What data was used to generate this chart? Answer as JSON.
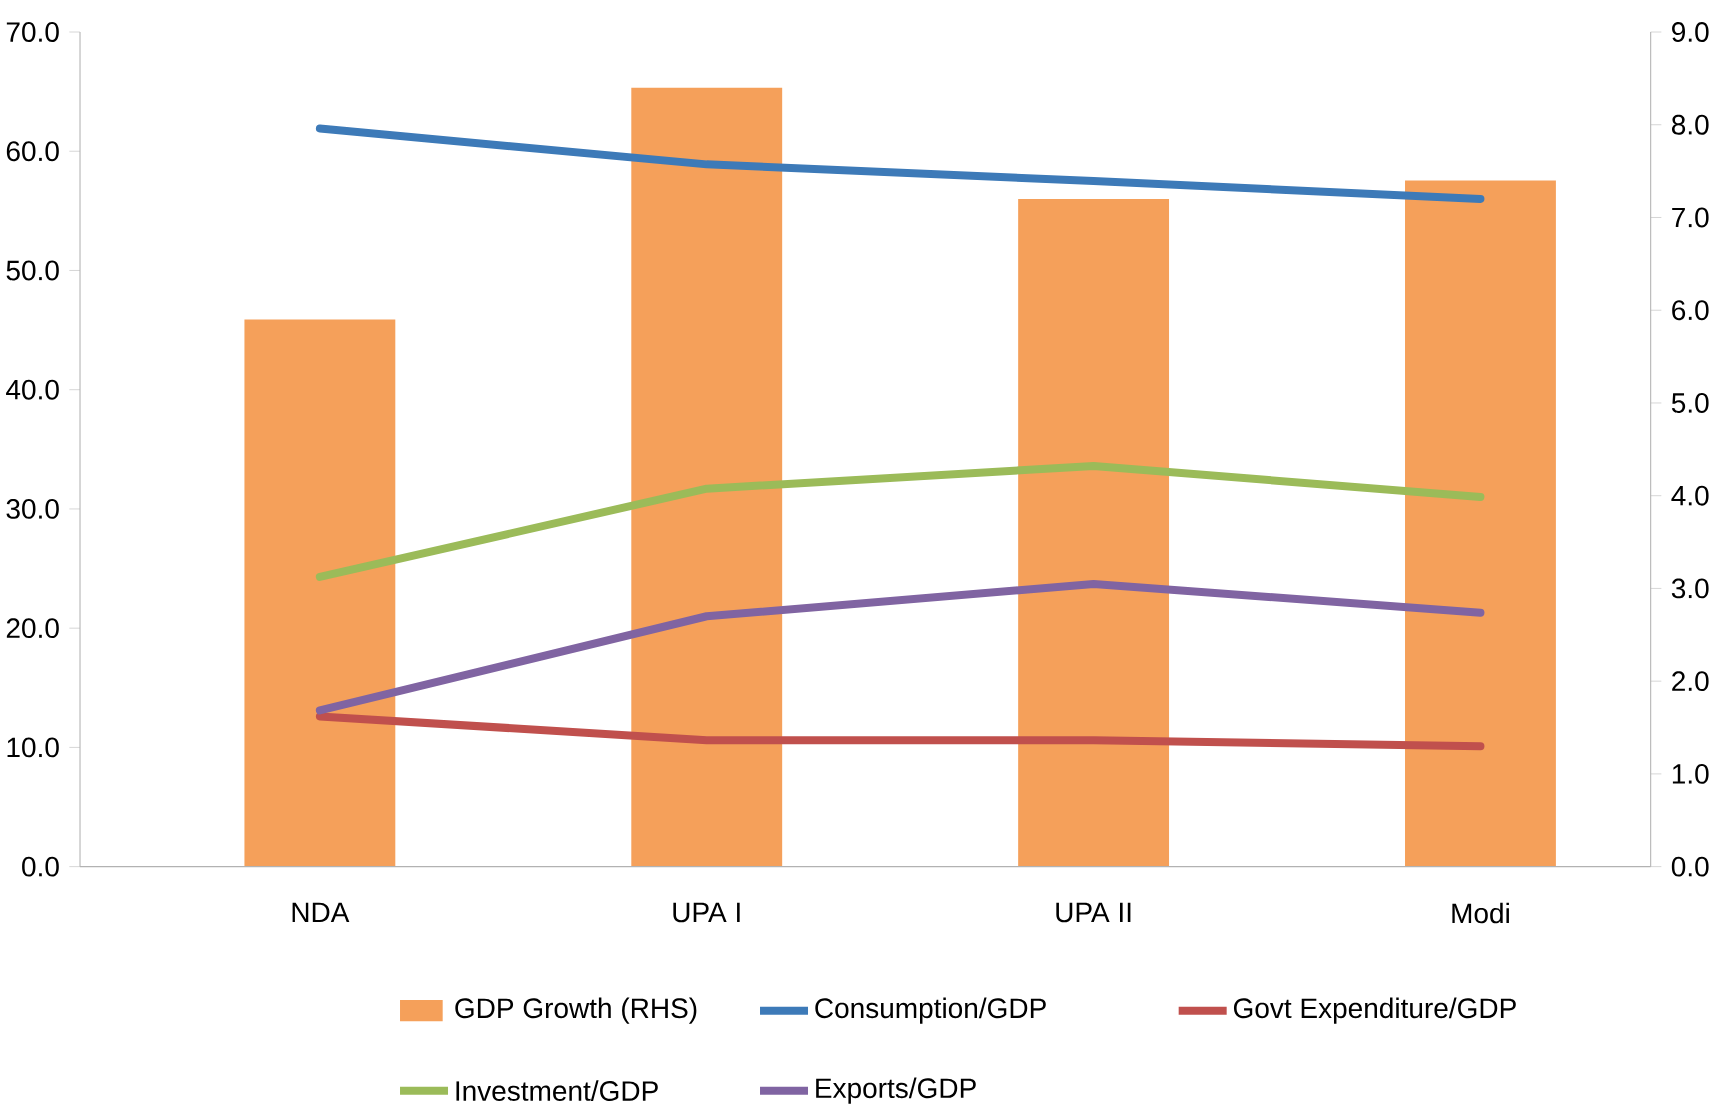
{
  "chart_data": {
    "type": "line",
    "categories": [
      "NDA",
      "UPA I",
      "UPA II",
      "Modi"
    ],
    "series": [
      {
        "name": "GDP Growth (RHS)",
        "type": "bar",
        "axis": "y2",
        "color": "#f5a05a",
        "values": [
          5.9,
          8.4,
          7.2,
          7.4
        ]
      },
      {
        "name": "Consumption/GDP",
        "color": "#3d7ab8",
        "values": [
          61.9,
          58.9,
          57.5,
          56.0
        ]
      },
      {
        "name": "Govt Expenditure/GDP",
        "color": "#c0504d",
        "values": [
          12.6,
          10.6,
          10.6,
          10.1
        ]
      },
      {
        "name": "Investment/GDP",
        "color": "#9bbb59",
        "values": [
          24.3,
          31.7,
          33.6,
          31.0
        ]
      },
      {
        "name": "Exports/GDP",
        "color": "#8064a2",
        "values": [
          13.1,
          21.0,
          23.7,
          21.3
        ]
      }
    ],
    "ylim": [
      0,
      70
    ],
    "yticks": [
      {
        "value": 0,
        "label": "0.0"
      },
      {
        "value": 10,
        "label": "10.0"
      },
      {
        "value": 20,
        "label": "20.0"
      },
      {
        "value": 30,
        "label": "30.0"
      },
      {
        "value": 40,
        "label": "40.0"
      },
      {
        "value": 50,
        "label": "50.0"
      },
      {
        "value": 60,
        "label": "60.0"
      },
      {
        "value": 70,
        "label": "70.0"
      }
    ],
    "y2lim": [
      0,
      9
    ],
    "y2ticks": [
      {
        "value": 0,
        "label": "0.0"
      },
      {
        "value": 1,
        "label": "1.0"
      },
      {
        "value": 2,
        "label": "2.0"
      },
      {
        "value": 3,
        "label": "3.0"
      },
      {
        "value": 4,
        "label": "4.0"
      },
      {
        "value": 5,
        "label": "5.0"
      },
      {
        "value": 6,
        "label": "6.0"
      },
      {
        "value": 7,
        "label": "7.0"
      },
      {
        "value": 8,
        "label": "8.0"
      },
      {
        "value": 9,
        "label": "9.0"
      }
    ],
    "legend": "bottom",
    "marker": "none",
    "line_style": "solid"
  }
}
